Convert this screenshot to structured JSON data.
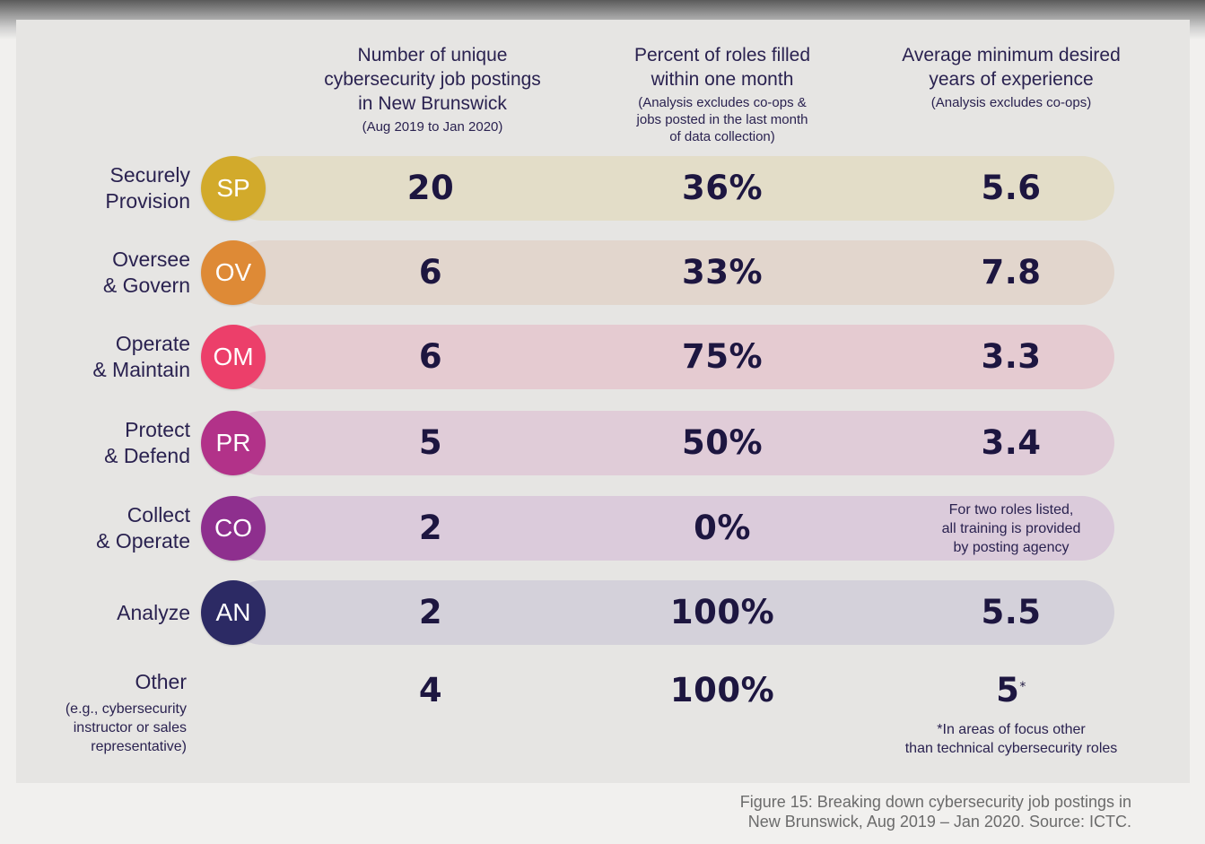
{
  "chart_data": {
    "type": "table",
    "columns": [
      {
        "title": "Number of unique\ncybersecurity job postings\nin New Brunswick",
        "note": "(Aug 2019 to Jan 2020)"
      },
      {
        "title": "Percent of roles filled\nwithin one month",
        "note": "(Analysis excludes co-ops &\njobs posted in the last month\nof data collection)"
      },
      {
        "title": "Average minimum desired\nyears of experience",
        "note": "(Analysis excludes co-ops)"
      }
    ],
    "rows": [
      {
        "label": "Securely\nProvision",
        "abbr": "SP",
        "color": "#d2aa2b",
        "bar": "#e3ddc8",
        "postings": "20",
        "filled": "36%",
        "experience": "5.6"
      },
      {
        "label": "Oversee\n& Govern",
        "abbr": "OV",
        "color": "#de8a36",
        "bar": "#e2d6cd",
        "postings": "6",
        "filled": "33%",
        "experience": "7.8"
      },
      {
        "label": "Operate\n& Maintain",
        "abbr": "OM",
        "color": "#ec3f6a",
        "bar": "#e5cbd1",
        "postings": "6",
        "filled": "75%",
        "experience": "3.3"
      },
      {
        "label": "Protect\n& Defend",
        "abbr": "PR",
        "color": "#b23289",
        "bar": "#e0ccd8",
        "postings": "5",
        "filled": "50%",
        "experience": "3.4"
      },
      {
        "label": "Collect\n& Operate",
        "abbr": "CO",
        "color": "#8e2f8e",
        "bar": "#dbcbdb",
        "postings": "2",
        "filled": "0%",
        "experience_note": "For two roles listed,\nall training is provided\nby posting agency"
      },
      {
        "label": "Analyze",
        "abbr": "AN",
        "color": "#2c2a64",
        "bar": "#d4d1da",
        "postings": "2",
        "filled": "100%",
        "experience": "5.5"
      }
    ],
    "other": {
      "label": "Other",
      "sublabel": "(e.g., cybersecurity\ninstructor or sales\nrepresentative)",
      "postings": "4",
      "filled": "100%",
      "experience": "5",
      "experience_marker": "*",
      "footnote": "*In areas of focus other\nthan technical cybersecurity roles"
    }
  },
  "caption": "Figure 15: Breaking down cybersecurity job postings in\nNew Brunswick, Aug 2019 – Jan 2020. Source: ICTC."
}
